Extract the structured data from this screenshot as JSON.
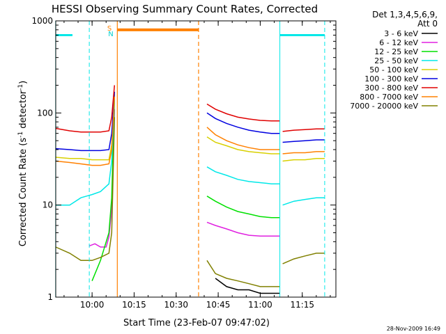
{
  "chart_data": {
    "type": "line",
    "title": "HESSI Observing Summary Count Rates, Corrected",
    "xlabel": "Start Time (23-Feb-07 09:47:02)",
    "ylabel": "Corrected Count Rate (s⁻¹ detector⁻¹)",
    "ylabel_main": "Corrected Count Rate (s",
    "ylabel_sup1": "-1",
    "ylabel_mid": " detector",
    "ylabel_sup2": "-1",
    "ylabel_end": ")",
    "timestamp": "28-Nov-2009 16:49",
    "y_scale": "log",
    "ylim": [
      1,
      1000
    ],
    "xlim": [
      "09:47:02",
      "11:27:00"
    ],
    "x_ticks": [
      "10:00",
      "10:15",
      "10:30",
      "10:45",
      "11:00",
      "11:15"
    ],
    "y_ticks": [
      "1",
      "10",
      "100",
      "1000"
    ],
    "legend_position": "right",
    "legend_header": [
      "Det 1,3,4,5,6,9,",
      "Att 0"
    ],
    "series": [
      {
        "name": "3 - 6 keV",
        "color": "#000000",
        "segments": [
          {
            "x": [
              "10:44",
              "10:48",
              "10:52",
              "10:56",
              "11:00",
              "11:04",
              "11:07"
            ],
            "y": [
              1.6,
              1.3,
              1.2,
              1.2,
              1.1,
              1.1,
              1.1
            ]
          }
        ]
      },
      {
        "name": "6 - 12 keV",
        "color": "#e020e0",
        "segments": [
          {
            "x": [
              "09:59",
              "10:01",
              "10:03",
              "10:05",
              "10:06",
              "10:07",
              "10:08"
            ],
            "y": [
              3.6,
              3.8,
              3.5,
              3.5,
              4.5,
              9,
              110
            ]
          },
          {
            "x": [
              "10:41",
              "10:44",
              "10:48",
              "10:52",
              "10:56",
              "11:00",
              "11:04",
              "11:07"
            ],
            "y": [
              6.5,
              6,
              5.5,
              5,
              4.7,
              4.6,
              4.6,
              4.6
            ]
          }
        ]
      },
      {
        "name": "12 - 25 keV",
        "color": "#00e000",
        "segments": [
          {
            "x": [
              "10:00",
              "10:03",
              "10:06",
              "10:07",
              "10:08"
            ],
            "y": [
              1.5,
              2.5,
              5,
              12,
              140
            ]
          },
          {
            "x": [
              "10:41",
              "10:44",
              "10:48",
              "10:52",
              "10:56",
              "11:00",
              "11:04",
              "11:07"
            ],
            "y": [
              12.5,
              11,
              9.5,
              8.5,
              8,
              7.5,
              7.3,
              7.3
            ]
          }
        ]
      },
      {
        "name": "25 - 50 keV",
        "color": "#00e8e8",
        "segments": [
          {
            "x": [
              "09:47",
              "09:52",
              "09:56",
              "10:00",
              "10:03",
              "10:06",
              "10:07",
              "10:08"
            ],
            "y": [
              10,
              10,
              12,
              13,
              14,
              17,
              30,
              150
            ]
          },
          {
            "x": [
              "10:41",
              "10:44",
              "10:48",
              "10:52",
              "10:56",
              "11:00",
              "11:04",
              "11:07"
            ],
            "y": [
              26,
              23,
              21,
              19,
              18,
              17.5,
              17,
              17
            ]
          },
          {
            "x": [
              "11:08",
              "11:12",
              "11:16",
              "11:20",
              "11:23"
            ],
            "y": [
              10,
              11,
              11.5,
              12,
              12
            ]
          }
        ]
      },
      {
        "name": "50 - 100 keV",
        "color": "#d8d000",
        "segments": [
          {
            "x": [
              "09:47",
              "09:52",
              "09:56",
              "10:00",
              "10:03",
              "10:06",
              "10:07",
              "10:08"
            ],
            "y": [
              33,
              32,
              32,
              31,
              31,
              31,
              45,
              160
            ]
          },
          {
            "x": [
              "10:41",
              "10:44",
              "10:48",
              "10:52",
              "10:56",
              "11:00",
              "11:04",
              "11:07"
            ],
            "y": [
              55,
              48,
              44,
              40,
              38,
              37,
              36,
              36
            ]
          },
          {
            "x": [
              "11:08",
              "11:12",
              "11:16",
              "11:20",
              "11:23"
            ],
            "y": [
              30,
              31,
              31,
              32,
              32
            ]
          }
        ]
      },
      {
        "name": "100 - 300 keV",
        "color": "#0000e0",
        "segments": [
          {
            "x": [
              "09:47",
              "09:52",
              "09:56",
              "10:00",
              "10:03",
              "10:06",
              "10:07",
              "10:08"
            ],
            "y": [
              41,
              40,
              39,
              39,
              39,
              40,
              60,
              170
            ]
          },
          {
            "x": [
              "10:41",
              "10:44",
              "10:48",
              "10:52",
              "10:56",
              "11:00",
              "11:04",
              "11:07"
            ],
            "y": [
              100,
              87,
              77,
              70,
              65,
              62,
              60,
              60
            ]
          },
          {
            "x": [
              "11:08",
              "11:12",
              "11:16",
              "11:20",
              "11:23"
            ],
            "y": [
              48,
              49,
              50,
              51,
              51
            ]
          }
        ]
      },
      {
        "name": "300 - 800 keV",
        "color": "#e00000",
        "segments": [
          {
            "x": [
              "09:47",
              "09:52",
              "09:56",
              "10:00",
              "10:03",
              "10:06",
              "10:07",
              "10:08"
            ],
            "y": [
              68,
              64,
              62,
              62,
              62,
              64,
              90,
              200
            ]
          },
          {
            "x": [
              "10:41",
              "10:44",
              "10:48",
              "10:52",
              "10:56",
              "11:00",
              "11:04",
              "11:07"
            ],
            "y": [
              125,
              110,
              98,
              90,
              86,
              83,
              82,
              82
            ]
          },
          {
            "x": [
              "11:08",
              "11:12",
              "11:16",
              "11:20",
              "11:23"
            ],
            "y": [
              63,
              65,
              66,
              67,
              67
            ]
          }
        ]
      },
      {
        "name": "800 - 7000 keV",
        "color": "#ff8000",
        "segments": [
          {
            "x": [
              "09:47",
              "09:52",
              "09:56",
              "10:00",
              "10:03",
              "10:06",
              "10:07",
              "10:08"
            ],
            "y": [
              30,
              29,
              28,
              27,
              27,
              28,
              40,
              150
            ]
          },
          {
            "x": [
              "10:41",
              "10:44",
              "10:48",
              "10:52",
              "10:56",
              "11:00",
              "11:04",
              "11:07"
            ],
            "y": [
              70,
              58,
              50,
              45,
              42,
              40,
              40,
              40
            ]
          },
          {
            "x": [
              "11:08",
              "11:12",
              "11:16",
              "11:20",
              "11:23"
            ],
            "y": [
              36,
              37,
              37,
              38,
              38
            ]
          }
        ]
      },
      {
        "name": "7000 - 20000 keV",
        "color": "#808000",
        "segments": [
          {
            "x": [
              "09:47",
              "09:52",
              "09:56",
              "10:00",
              "10:03",
              "10:06",
              "10:07",
              "10:08"
            ],
            "y": [
              3.5,
              3,
              2.5,
              2.5,
              2.7,
              3,
              5,
              90
            ]
          },
          {
            "x": [
              "10:41",
              "10:44",
              "10:48",
              "10:52",
              "10:56",
              "11:00",
              "11:04",
              "11:07"
            ],
            "y": [
              2.5,
              1.8,
              1.6,
              1.5,
              1.4,
              1.3,
              1.3,
              1.3
            ]
          },
          {
            "x": [
              "11:08",
              "11:12",
              "11:16",
              "11:20",
              "11:23"
            ],
            "y": [
              2.3,
              2.6,
              2.8,
              3,
              3
            ]
          }
        ]
      }
    ],
    "markers": {
      "saa_label": "S",
      "night_label": "N",
      "cyan_bars": [
        [
          "09:47",
          "09:53"
        ],
        [
          "11:07",
          "11:23"
        ]
      ],
      "orange_bar": [
        "10:09",
        "10:38"
      ],
      "cyan_solid_lines": [
        "09:47",
        "11:07"
      ],
      "cyan_dashed_lines": [
        "09:59",
        "11:23"
      ],
      "orange_solid_lines": [
        "10:09"
      ],
      "orange_dashed_lines": [
        "10:38"
      ],
      "bar_level": 700,
      "orange_bar_level": 800
    }
  }
}
